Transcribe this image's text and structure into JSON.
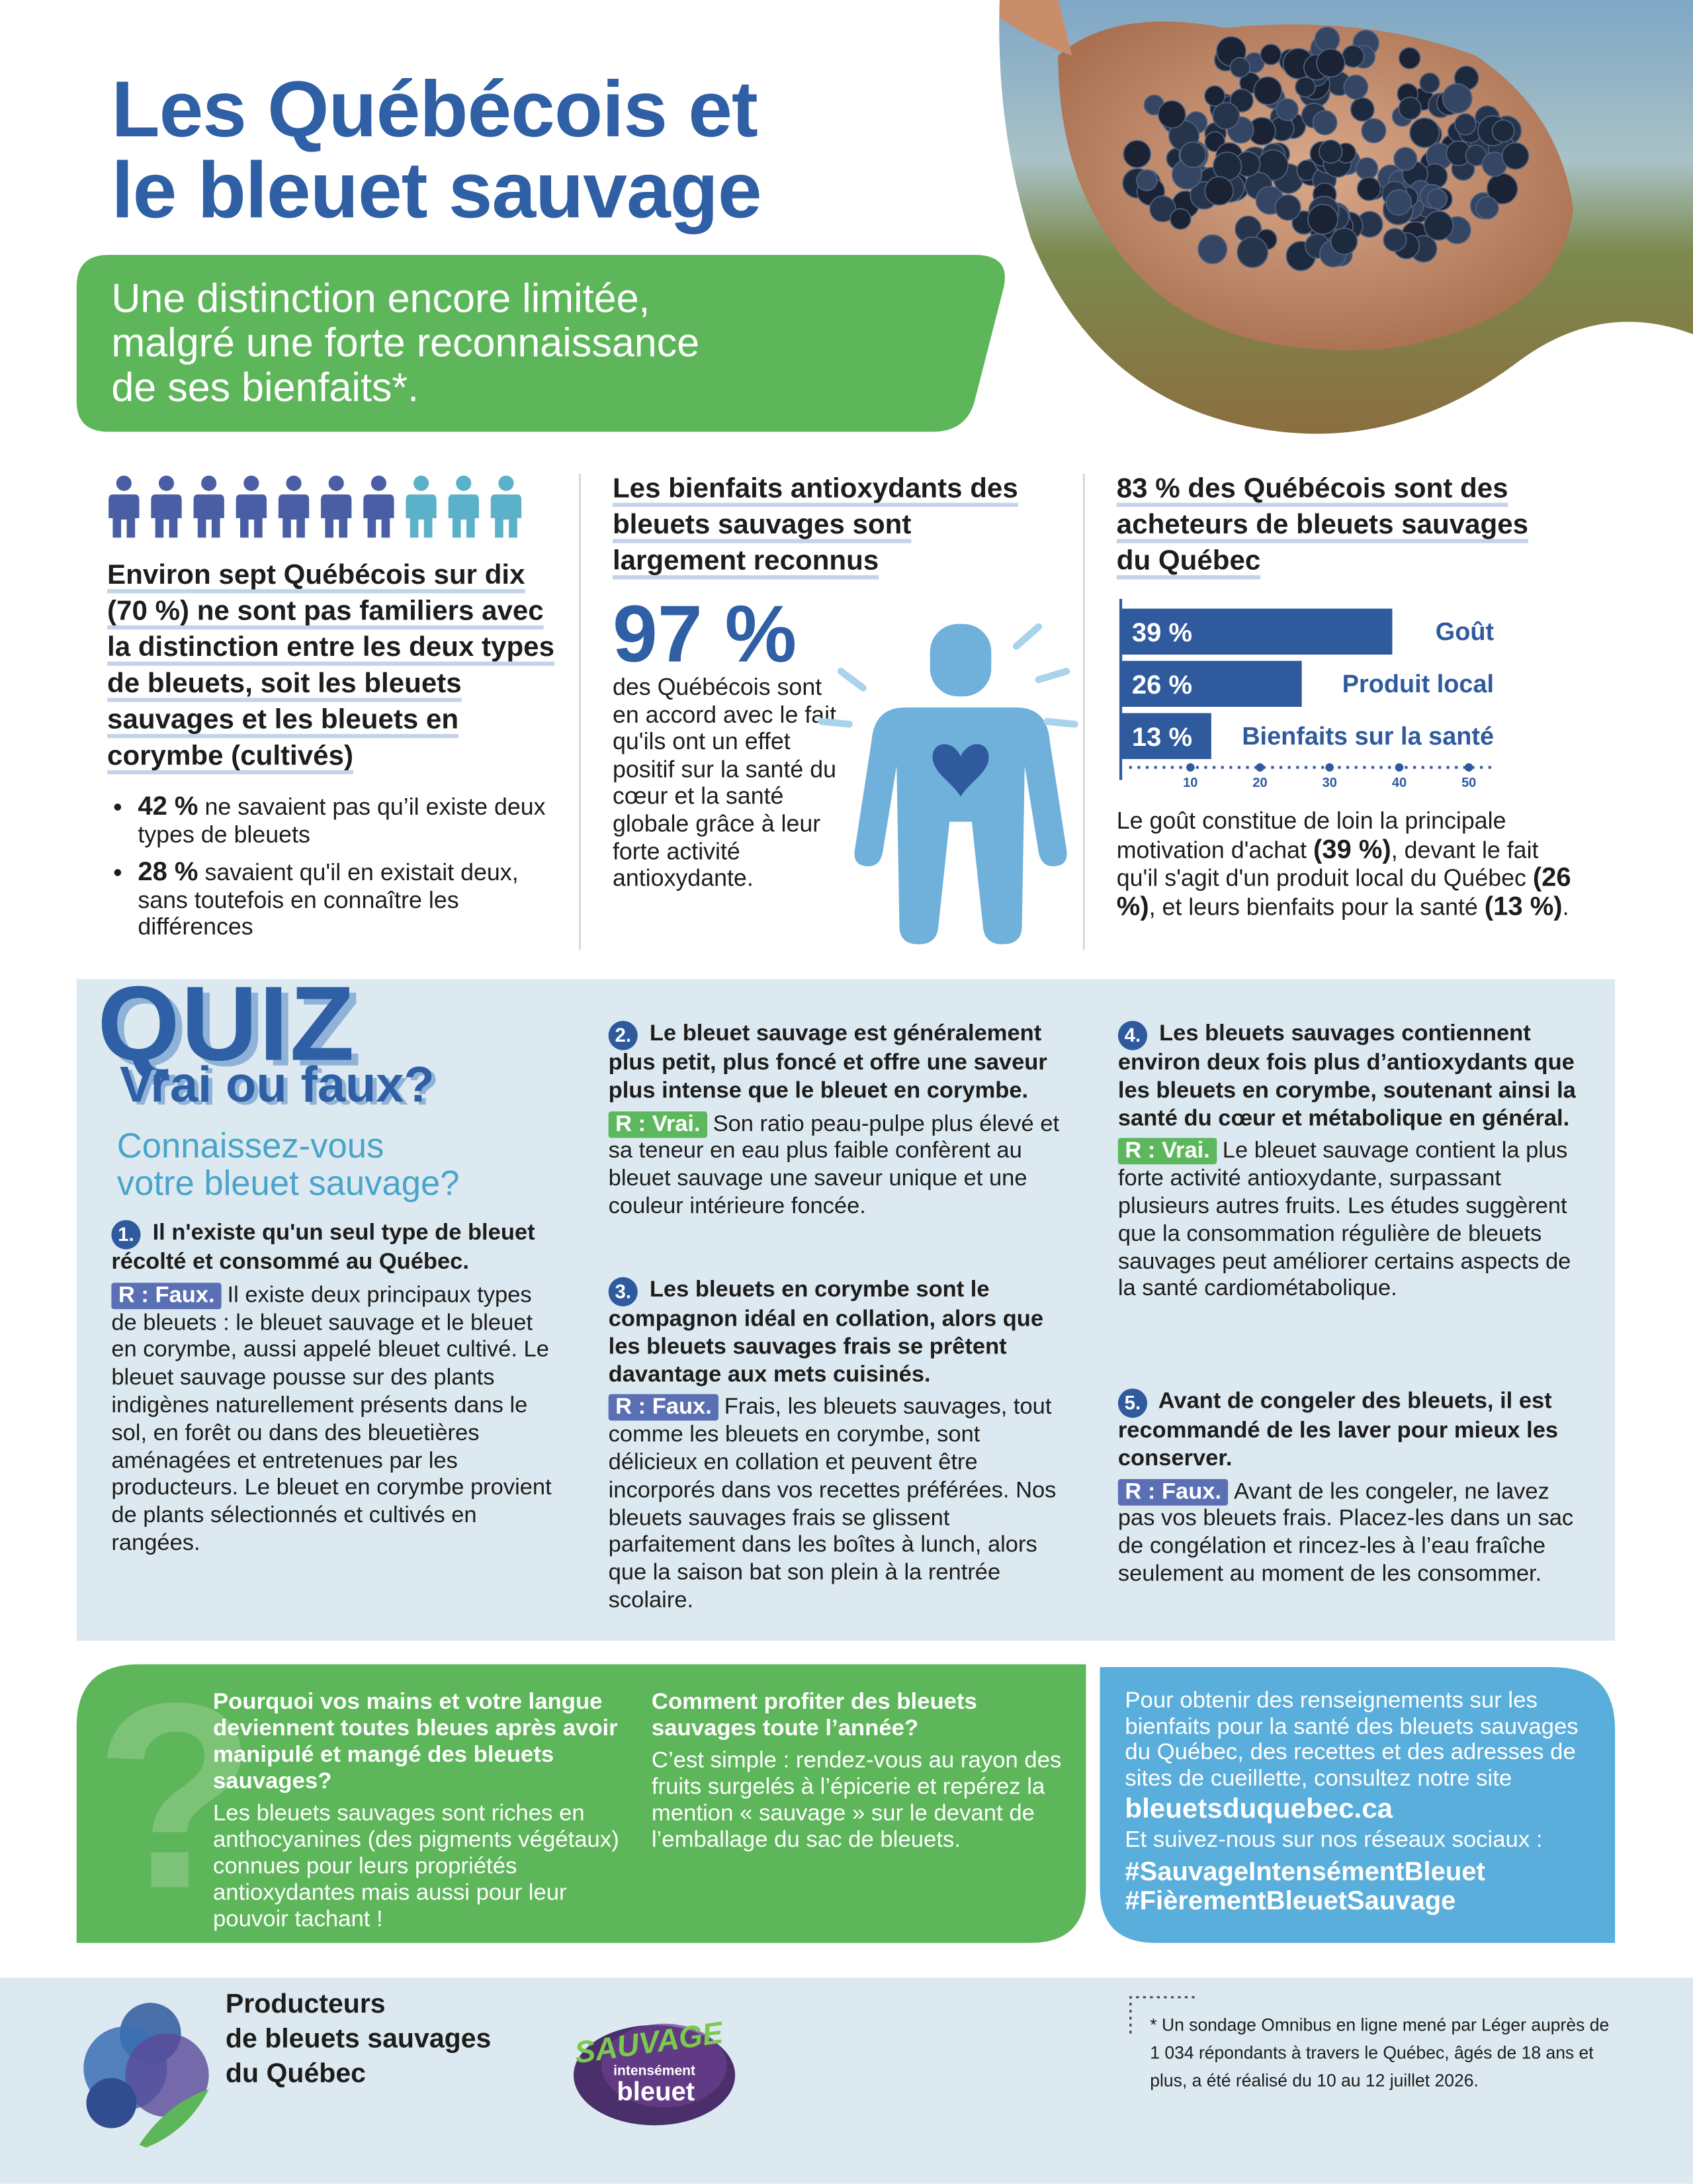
{
  "header": {
    "title": [
      "Les Québécois et",
      "le bleuet sauvage"
    ],
    "subtitle": [
      "Une distinction encore limitée,",
      "malgré une forte reconnaissance",
      "de ses bienfaits*."
    ]
  },
  "col1": {
    "lead": "Environ sept Québécois sur dix (70 %) ne sont pas familiers avec la distinction entre les deux types de bleuets, soit les bleuets sauvages et les bleuets en corymbe (cultivés)",
    "bullets": [
      {
        "figure": "42 %",
        "text": "ne savaient pas qu’il existe deux types de bleuets"
      },
      {
        "figure": "28 %",
        "text": "savaient qu'il en existait deux, sans toutefois en connaître les différences"
      }
    ]
  },
  "col2": {
    "heading": "Les bienfaits antioxydants des bleuets sauvages sont largement reconnus",
    "big_number": "97 %",
    "text": "des Québécois sont en accord avec le fait qu'ils ont un effet positif sur la santé du cœur et la santé globale grâce à leur forte activité antioxydante."
  },
  "col3": {
    "heading": "83 % des Québécois sont des acheteurs de bleuets sauvages du Québec",
    "chart": {
      "type": "bar",
      "categories": [
        "Goût",
        "Produit local",
        "Bienfaits sur la santé"
      ],
      "values": [
        39,
        26,
        13
      ],
      "value_labels": [
        "39 %",
        "26 %",
        "13 %"
      ],
      "color": "#2f5a9e",
      "xlim": [
        0,
        54
      ],
      "xticks": [
        10,
        20,
        30,
        40,
        50
      ]
    },
    "text": [
      "Le goût constitue de loin la principale motivation d'achat ",
      "(39 %)",
      ", devant le fait qu'il s'agit d'un produit local du Québec ",
      "(26 %)",
      ", et leurs bienfaits pour la santé ",
      "(13 %)",
      "."
    ]
  },
  "quiz": {
    "title": "QUIZ",
    "subtitle": "Vrai ou faux?",
    "intro": [
      "Connaissez-vous",
      "votre bleuet sauvage?"
    ],
    "items": [
      {
        "number": "1.",
        "question": "Il n'existe qu'un seul type de bleuet récolté et consommé au Québec.",
        "answer": "R : Faux.",
        "explanation": "Il existe deux principaux types de bleuets : le bleuet sauvage et le bleuet en corymbe, aussi appelé bleuet cultivé. Le bleuet sauvage pousse sur des plants indigènes naturellement présents dans le sol, en forêt ou dans des bleuetières aménagées et entretenues par les producteurs. Le bleuet en corymbe provient de plants sélectionnés et cultivés en rangées."
      },
      {
        "number": "2.",
        "question": "Le bleuet sauvage est généralement plus petit, plus foncé et offre une saveur plus intense que le bleuet en corymbe.",
        "answer": "R : Vrai.",
        "explanation": "Son ratio peau-pulpe plus élevé et sa teneur en eau plus faible confèrent au bleuet sauvage une saveur unique et une couleur intérieure foncée."
      },
      {
        "number": "3.",
        "question": "Les bleuets en corymbe sont le compagnon idéal en collation, alors que les bleuets sauvages frais se prêtent davantage aux mets cuisinés.",
        "answer": "R : Faux.",
        "explanation": "Frais, les bleuets sauvages, tout comme les bleuets en corymbe, sont délicieux en collation et peuvent être incorporés dans vos recettes préférées. Nos bleuets sauvages frais se glissent parfaitement dans les boîtes à lunch, alors que la saison bat son plein à la rentrée scolaire."
      },
      {
        "number": "4.",
        "question": "Les bleuets sauvages contiennent environ deux fois plus d’antioxydants que les bleuets en corymbe, soutenant ainsi la santé du cœur et métabolique en général.",
        "answer": "R : Vrai.",
        "explanation": "Le bleuet sauvage contient la plus forte activité antioxydante, surpassant plusieurs autres fruits. Les études suggèrent que la consommation régulière de bleuets sauvages peut améliorer certains aspects de la santé cardiométabolique."
      },
      {
        "number": "5.",
        "question": "Avant de congeler des bleuets, il est recommandé de les laver pour mieux les conserver.",
        "answer": "R : Faux.",
        "explanation": "Avant de les congeler, ne lavez pas vos bleuets frais. Placez-les dans un sac de congélation et rincez-les à l’eau fraîche seulement au moment de les consommer."
      }
    ]
  },
  "bottom": {
    "question_mark": "?",
    "hands": {
      "heading": "Pourquoi vos mains et votre langue deviennent toutes bleues après avoir manipulé et mangé des bleuets sauvages?",
      "text": "Les bleuets sauvages sont riches en anthocyanines (des pigments végétaux) connues pour leurs propriétés antioxydantes mais aussi pour leur pouvoir tachant !"
    },
    "year_round": {
      "heading": "Comment profiter des bleuets sauvages toute l’année?",
      "text": "C’est simple : rendez-vous au rayon des fruits surgelés à l’épicerie et repérez la mention « sauvage » sur le devant de l’emballage du sac de bleuets."
    },
    "contact": {
      "text": "Pour obtenir des renseignements sur les bienfaits pour la santé des bleuets sauvages du Québec, des recettes et des adresses de sites de cueillette, consultez notre site",
      "website": "bleuetsduquebec.ca",
      "social": "Et suivez-nous sur nos réseaux sociaux :",
      "hashtags": [
        "#SauvageIntensémentBleuet",
        "#FièrementBleuetSauvage"
      ]
    }
  },
  "footer": {
    "organization": [
      "Producteurs",
      "de bleuets sauvages",
      "du Québec"
    ],
    "logo": [
      "SAUVAGE",
      "intensément",
      "bleuet"
    ],
    "footnote": "* Un sondage Omnibus en ligne mené par Léger auprès de 1 034 répondants à travers le Québec, âgés de 18 ans et plus, a été réalisé du 10 au 12 juillet 2026."
  }
}
